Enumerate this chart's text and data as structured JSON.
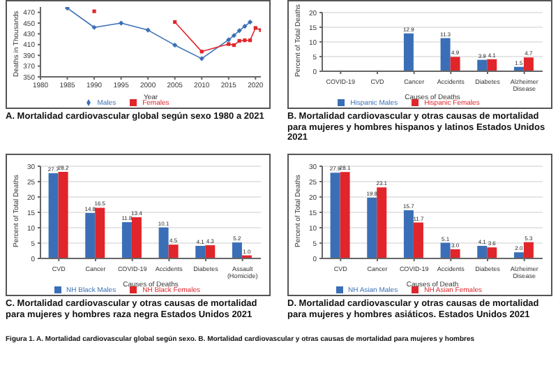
{
  "chart_data": [
    {
      "type": "line",
      "title": "A. Mortalidad cardiovascular global según sexo  1980 a 2021",
      "xlabel": "Year",
      "ylabel": "Deaths in Thousands",
      "x": [
        1985,
        1990,
        1995,
        2000,
        2005,
        2010,
        2015,
        2016,
        2017,
        2018,
        2019,
        2020,
        2021
      ],
      "xlim": [
        1980,
        2021
      ],
      "xticks": [
        1980,
        1985,
        1990,
        1995,
        2000,
        2005,
        2010,
        2015,
        2020
      ],
      "ylim": [
        350,
        480
      ],
      "yticks": [
        350,
        370,
        390,
        410,
        430,
        450,
        470
      ],
      "legend": "bottom",
      "series": [
        {
          "name": "Males",
          "color": "#3a6fb7",
          "marker": "diamond",
          "values": [
            478,
            442,
            450,
            437,
            409,
            384,
            419,
            427,
            436,
            444,
            452,
            null,
            null
          ]
        },
        {
          "name": "Females",
          "color": "#e0252b",
          "marker": "square",
          "values": [
            null,
            472,
            null,
            null,
            452,
            397,
            411,
            409,
            417,
            418,
            418,
            441,
            437
          ]
        }
      ]
    },
    {
      "type": "bar",
      "title": "B. Mortalidad cardiovascular y otras causas de mortalidad para  mujeres y hombres hispanos y latinos Estados Unidos 2021",
      "xlabel": "Causes of Deaths",
      "ylabel": "Percent of Total Deaths",
      "categories": [
        "COVID-19",
        "CVD",
        "Cancer",
        "Accidents",
        "Diabetes",
        "Alzheimer Disease"
      ],
      "ylim": [
        0,
        20
      ],
      "yticks": [
        0,
        5,
        10,
        15,
        20
      ],
      "grid": "y",
      "legend": "bottom",
      "series": [
        {
          "name": "Hispanic Males",
          "color": "#3a6fb7",
          "values": [
            null,
            null,
            12.9,
            11.3,
            3.9,
            1.5
          ],
          "value_labels": [
            null,
            null,
            "12.9",
            "11.3",
            "3.9",
            "1.5"
          ]
        },
        {
          "name": "Hispanic Females",
          "color": "#e0252b",
          "values": [
            null,
            null,
            null,
            4.9,
            4.1,
            4.7
          ],
          "value_labels": [
            null,
            null,
            null,
            "4.9",
            "4.1",
            "4.7"
          ]
        }
      ]
    },
    {
      "type": "bar",
      "title": "C. Mortalidad cardiovascular y otras causas de mortalidad para  mujeres y hombres raza negra Estados Unidos 2021",
      "xlabel": "Causes of Deaths",
      "ylabel": "Percent of Total Deaths",
      "categories": [
        "CVD",
        "Cancer",
        "COVID-19",
        "Accidents",
        "Diabetes",
        "Assault (Homicide)"
      ],
      "ylim": [
        0,
        30
      ],
      "yticks": [
        0,
        5,
        10,
        15,
        20,
        25,
        30
      ],
      "grid": "y",
      "legend": "bottom",
      "annotations": [
        "Figura 1. A. Mortalidad cardiovascular global según sexo. B. Mortalidad cardiovascular y otras causas de mortalidad para  mujeres y hombres"
      ],
      "series": [
        {
          "name": "NH Black Males",
          "color": "#3a6fb7",
          "values": [
            27.7,
            14.8,
            11.8,
            10.1,
            4.1,
            5.2
          ],
          "value_labels": [
            "27.7",
            "14.8",
            "11.8",
            "10.1",
            "4.1",
            "5.2"
          ]
        },
        {
          "name": "NH Black Females",
          "color": "#e0252b",
          "values": [
            28.2,
            16.5,
            13.4,
            4.5,
            4.3,
            1.0
          ],
          "value_labels": [
            "28.2",
            "16.5",
            "13.4",
            "4.5",
            "4.3",
            "1.0"
          ]
        }
      ]
    },
    {
      "type": "bar",
      "title": "D. Mortalidad cardiovascular y otras causas de mortalidad para  mujeres y hombres asiáticos. Estados Unidos 2021",
      "xlabel": "Causes of Death",
      "ylabel": "Percent of Total Deaths",
      "categories": [
        "CVD",
        "Cancer",
        "COVID-19",
        "Accidents",
        "Diabetes",
        "Alzheimer Disease"
      ],
      "ylim": [
        0,
        30
      ],
      "yticks": [
        0,
        5,
        10,
        15,
        20,
        25,
        30
      ],
      "grid": "y",
      "legend": "bottom",
      "series": [
        {
          "name": "NH Asian Males",
          "color": "#3a6fb7",
          "values": [
            27.9,
            19.8,
            15.7,
            5.1,
            4.1,
            2.0
          ],
          "value_labels": [
            "27.9",
            "19.8",
            "15.7",
            "5.1",
            "4.1",
            "2.0"
          ]
        },
        {
          "name": "NH Asian Females",
          "color": "#e0252b",
          "values": [
            28.1,
            23.1,
            11.7,
            3.0,
            3.6,
            5.3
          ],
          "value_labels": [
            "28.1",
            "23.1",
            "11.7",
            "3.0",
            "3.6",
            "5.3"
          ]
        }
      ]
    }
  ]
}
